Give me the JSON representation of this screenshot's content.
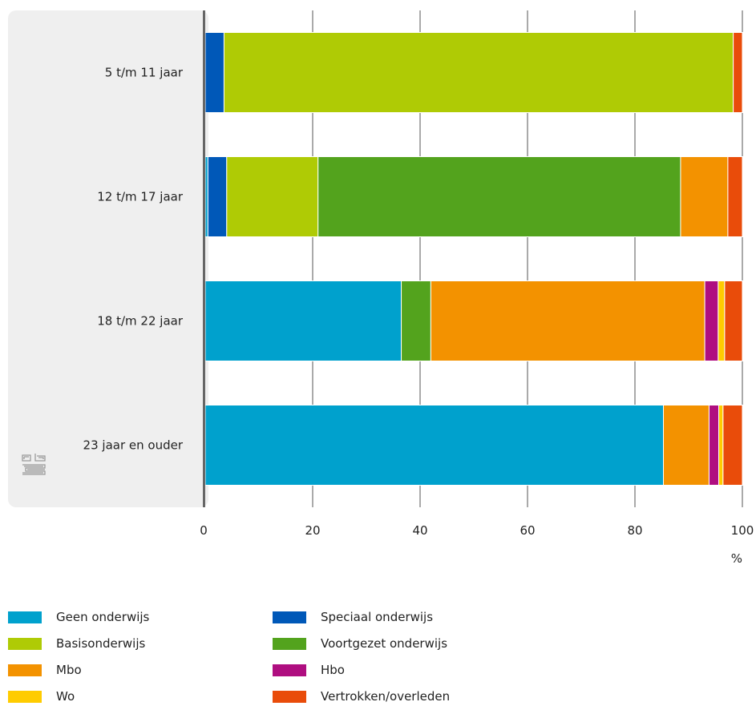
{
  "chart_data": {
    "type": "bar",
    "orientation": "horizontal",
    "stacked": true,
    "categories": [
      "5 t/m 11 jaar",
      "12 t/m 17 jaar",
      "18 t/m 22 jaar",
      "23 jaar en ouder"
    ],
    "series": [
      {
        "name": "Geen onderwijs",
        "color": "#00a1cd",
        "values": [
          0,
          0.5,
          36.5,
          85.3
        ]
      },
      {
        "name": "Speciaal onderwijs",
        "color": "#0058b8",
        "values": [
          3.5,
          3.5,
          0,
          0
        ]
      },
      {
        "name": "Basisonderwijs",
        "color": "#afcb05",
        "values": [
          94.8,
          17.0,
          0,
          0
        ]
      },
      {
        "name": "Voortgezet onderwijs",
        "color": "#53a31d",
        "values": [
          0,
          67.5,
          5.5,
          0
        ]
      },
      {
        "name": "Mbo",
        "color": "#f39200",
        "values": [
          0,
          8.8,
          51.0,
          8.5
        ]
      },
      {
        "name": "Hbo",
        "color": "#af0e80",
        "values": [
          0,
          0,
          2.5,
          1.8
        ]
      },
      {
        "name": "Wo",
        "color": "#ffcc00",
        "values": [
          0,
          0,
          1.2,
          0.8
        ]
      },
      {
        "name": "Vertrokken/overleden",
        "color": "#e94c0a",
        "values": [
          1.7,
          2.7,
          3.3,
          3.6
        ]
      }
    ],
    "xlabel": "%",
    "xlim": [
      0,
      100
    ],
    "xticks": [
      "0",
      "20",
      "40",
      "60",
      "80",
      "100"
    ],
    "grid": true,
    "legend_position": "bottom"
  },
  "logo": {
    "name": "cbs-logo-icon",
    "text": "cbs"
  }
}
